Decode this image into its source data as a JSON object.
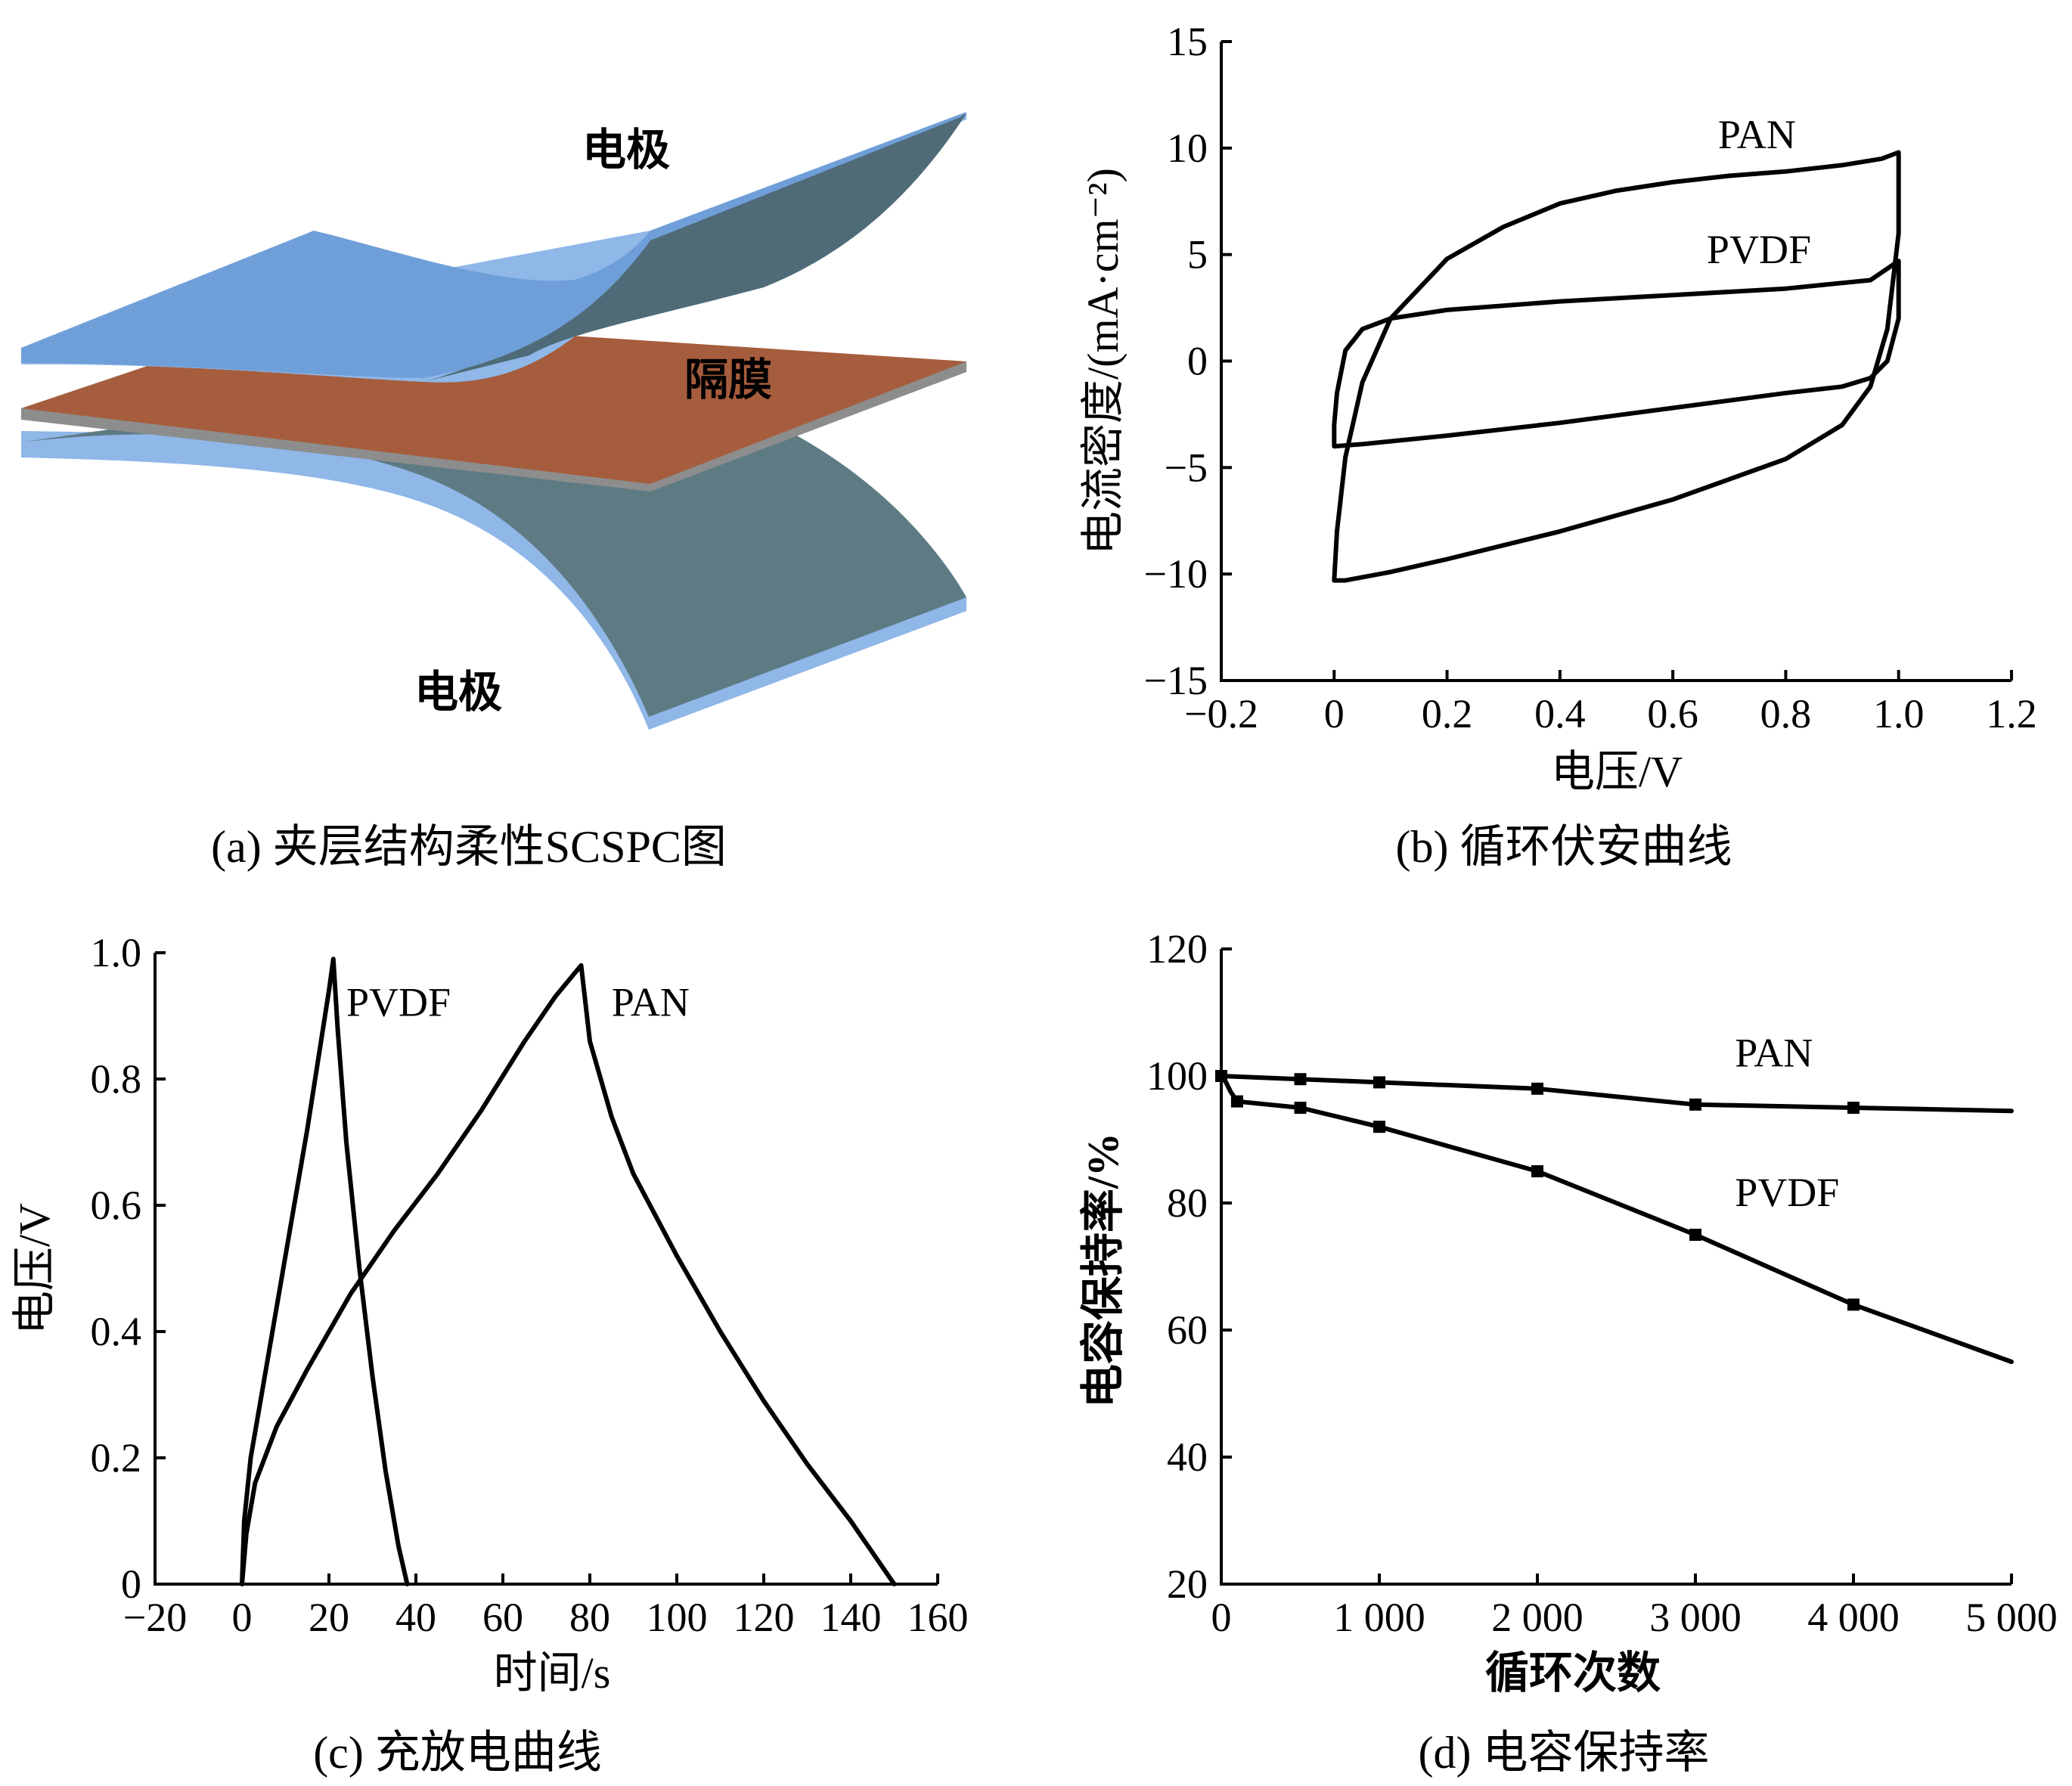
{
  "panels": {
    "a": {
      "caption": "(a)  夹层结构柔性SCSPC图",
      "labels": {
        "top_electrode": "电极",
        "separator": "隔膜",
        "bottom_electrode": "电极"
      },
      "colors": {
        "electrode": "#5e7b84",
        "electrode_edge": "#8fb7e8",
        "electrode_top": "#6f9fd8",
        "separator": "#a65d3d",
        "separator_edge": "#8d8d8d"
      }
    },
    "b": {
      "caption": "(b)  循环伏安曲线"
    },
    "c": {
      "caption": "(c)  充放电曲线"
    },
    "d": {
      "caption": "(d)  电容保持率"
    }
  },
  "chart_data": [
    {
      "id": "b",
      "type": "line",
      "title": "循环伏安曲线",
      "xlabel": "电压/V",
      "ylabel": "电流密度/(mA·cm⁻²)",
      "xlim": [
        -0.2,
        1.2
      ],
      "ylim": [
        -15,
        15
      ],
      "xticks": [
        -0.2,
        0,
        0.2,
        0.4,
        0.6,
        0.8,
        1.0,
        1.2
      ],
      "xtick_labels": [
        "−0.2",
        "0",
        "0.2",
        "0.4",
        "0.6",
        "0.8",
        "1.0",
        "1.2"
      ],
      "yticks": [
        -15,
        -10,
        -5,
        0,
        5,
        10,
        15
      ],
      "ytick_labels": [
        "−15",
        "−10",
        "−5",
        "0",
        "5",
        "10",
        "15"
      ],
      "series": [
        {
          "name": "PAN",
          "label_at": [
            0.68,
            10.0
          ],
          "x": [
            0,
            0.005,
            0.02,
            0.05,
            0.1,
            0.2,
            0.3,
            0.4,
            0.5,
            0.6,
            0.7,
            0.8,
            0.9,
            0.97,
            1.0,
            1.0,
            0.98,
            0.95,
            0.9,
            0.8,
            0.6,
            0.4,
            0.2,
            0.1,
            0.02,
            0
          ],
          "y": [
            -10.3,
            -8.0,
            -4.5,
            -1.0,
            2.0,
            4.8,
            6.3,
            7.4,
            8.0,
            8.4,
            8.7,
            8.9,
            9.2,
            9.5,
            9.8,
            6.0,
            1.5,
            -1.2,
            -3.0,
            -4.6,
            -6.5,
            -8.0,
            -9.3,
            -9.9,
            -10.3,
            -10.3
          ]
        },
        {
          "name": "PVDF",
          "label_at": [
            0.66,
            4.6
          ],
          "x": [
            0,
            0,
            0.005,
            0.02,
            0.05,
            0.1,
            0.2,
            0.4,
            0.6,
            0.8,
            0.95,
            1.0,
            1.0,
            0.98,
            0.95,
            0.9,
            0.8,
            0.6,
            0.4,
            0.2,
            0.05,
            0
          ],
          "y": [
            -4.0,
            -3.0,
            -1.5,
            0.5,
            1.5,
            2.0,
            2.4,
            2.8,
            3.1,
            3.4,
            3.8,
            4.7,
            2.0,
            0.0,
            -0.8,
            -1.2,
            -1.5,
            -2.2,
            -2.9,
            -3.5,
            -3.9,
            -4.0
          ]
        }
      ]
    },
    {
      "id": "c",
      "type": "line",
      "title": "充放电曲线",
      "xlabel": "时间/s",
      "ylabel": "电压/V",
      "xlim": [
        -20,
        160
      ],
      "ylim": [
        0,
        1.0
      ],
      "xticks": [
        -20,
        0,
        20,
        40,
        60,
        80,
        100,
        120,
        140,
        160
      ],
      "xtick_labels": [
        "−20",
        "0",
        "20",
        "40",
        "60",
        "80",
        "100",
        "120",
        "140",
        "160"
      ],
      "yticks": [
        0,
        0.2,
        0.4,
        0.6,
        0.8,
        1.0
      ],
      "ytick_labels": [
        "0",
        "0.2",
        "0.4",
        "0.6",
        "0.8",
        "1.0"
      ],
      "series": [
        {
          "name": "PVDF",
          "label_at": [
            24,
            0.9
          ],
          "x": [
            0,
            0.5,
            2,
            5,
            10,
            15,
            20,
            21,
            22,
            24,
            27,
            30,
            33,
            36,
            38
          ],
          "y": [
            0,
            0.1,
            0.2,
            0.32,
            0.52,
            0.72,
            0.94,
            0.99,
            0.88,
            0.7,
            0.5,
            0.33,
            0.18,
            0.06,
            0
          ]
        },
        {
          "name": "PAN",
          "label_at": [
            85,
            0.9
          ],
          "x": [
            0,
            1,
            3,
            8,
            15,
            25,
            35,
            45,
            55,
            65,
            72,
            78,
            80,
            85,
            90,
            100,
            110,
            120,
            130,
            140,
            150
          ],
          "y": [
            0,
            0.08,
            0.16,
            0.25,
            0.34,
            0.46,
            0.56,
            0.65,
            0.75,
            0.86,
            0.93,
            0.98,
            0.86,
            0.74,
            0.65,
            0.52,
            0.4,
            0.29,
            0.19,
            0.1,
            0
          ]
        }
      ]
    },
    {
      "id": "d",
      "type": "line",
      "title": "电容保持率",
      "xlabel": "循环次数",
      "ylabel": "电容保持率/%",
      "xlim": [
        0,
        5000
      ],
      "ylim": [
        20,
        120
      ],
      "xticks": [
        0,
        1000,
        2000,
        3000,
        4000,
        5000
      ],
      "xtick_labels": [
        "0",
        "1 000",
        "2 000",
        "3 000",
        "4 000",
        "5 000"
      ],
      "yticks": [
        20,
        40,
        60,
        80,
        100,
        120
      ],
      "ytick_labels": [
        "20",
        "40",
        "60",
        "80",
        "100",
        "120"
      ],
      "series": [
        {
          "name": "PAN",
          "label_at": [
            3250,
            101.5
          ],
          "x": [
            0,
            500,
            1000,
            2000,
            3000,
            4000,
            5000
          ],
          "y": [
            100,
            99.5,
            99,
            98,
            95.5,
            95,
            94.5
          ],
          "markers": [
            0,
            500,
            1000,
            2000,
            3000,
            4000
          ]
        },
        {
          "name": "PVDF",
          "label_at": [
            3250,
            79.5
          ],
          "x": [
            0,
            30,
            60,
            100,
            500,
            1000,
            1500,
            2000,
            2500,
            3000,
            3500,
            4000,
            4500,
            5000
          ],
          "y": [
            100,
            99,
            97.5,
            96,
            95,
            92,
            88.5,
            85,
            80,
            75,
            69.5,
            64,
            59.5,
            55
          ],
          "markers": [
            100,
            500,
            1000,
            2000,
            3000,
            4000
          ]
        }
      ]
    }
  ]
}
